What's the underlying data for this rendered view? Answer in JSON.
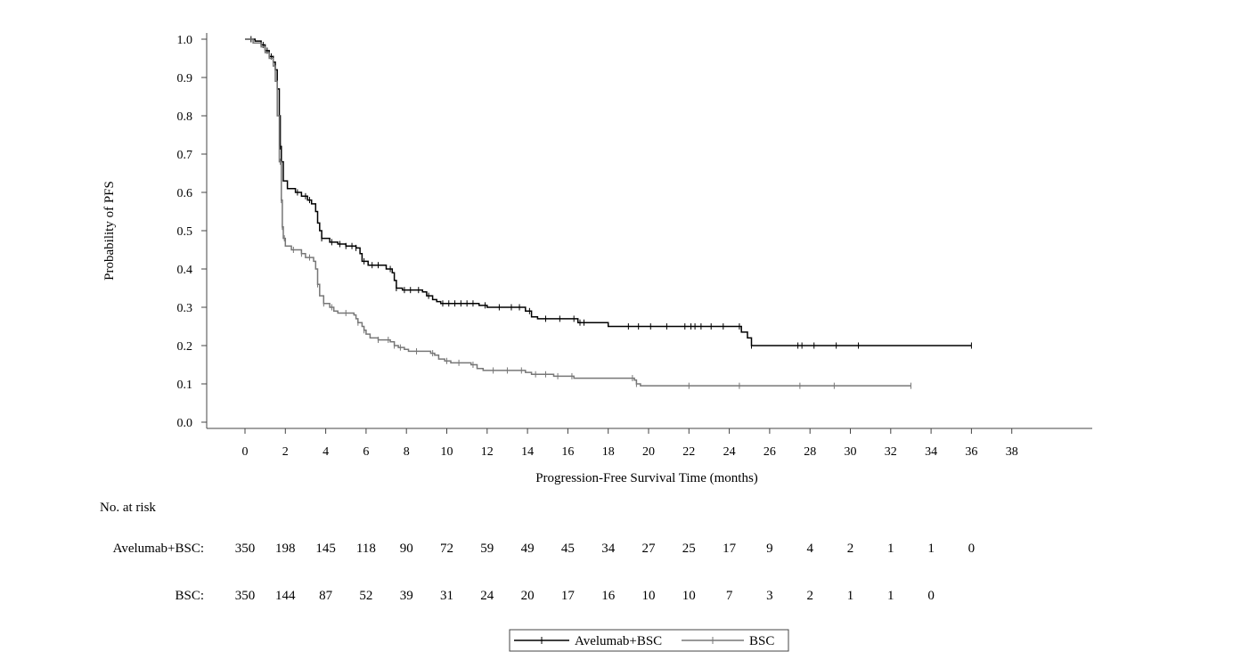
{
  "chart_data": {
    "type": "line",
    "subtype": "kaplan-meier step",
    "title": "",
    "xlabel": "Progression-Free Survival Time (months)",
    "ylabel": "Probability of PFS",
    "xlim": [
      -2,
      42
    ],
    "ylim": [
      0,
      1.0
    ],
    "x_ticks": [
      0,
      2,
      4,
      6,
      8,
      10,
      12,
      14,
      16,
      18,
      20,
      22,
      24,
      26,
      28,
      30,
      32,
      34,
      36,
      38
    ],
    "y_ticks": [
      0.0,
      0.1,
      0.2,
      0.3,
      0.4,
      0.5,
      0.6,
      0.7,
      0.8,
      0.9,
      1.0
    ],
    "y_tick_labels": [
      "0.0",
      "0.1",
      "0.2",
      "0.3",
      "0.4",
      "0.5",
      "0.6",
      "0.7",
      "0.8",
      "0.9",
      "1.0"
    ],
    "grid": false,
    "legend_position": "bottom-center",
    "series": [
      {
        "name": "Avelumab+BSC",
        "color": "#000000",
        "steps": [
          [
            0,
            1.0
          ],
          [
            0.5,
            0.995
          ],
          [
            0.8,
            0.985
          ],
          [
            1.0,
            0.97
          ],
          [
            1.2,
            0.955
          ],
          [
            1.4,
            0.94
          ],
          [
            1.5,
            0.92
          ],
          [
            1.6,
            0.87
          ],
          [
            1.7,
            0.8
          ],
          [
            1.75,
            0.72
          ],
          [
            1.8,
            0.68
          ],
          [
            1.9,
            0.63
          ],
          [
            2.1,
            0.61
          ],
          [
            2.5,
            0.6
          ],
          [
            2.8,
            0.59
          ],
          [
            3.1,
            0.58
          ],
          [
            3.3,
            0.57
          ],
          [
            3.5,
            0.55
          ],
          [
            3.6,
            0.52
          ],
          [
            3.7,
            0.5
          ],
          [
            3.8,
            0.48
          ],
          [
            4.2,
            0.47
          ],
          [
            4.6,
            0.465
          ],
          [
            5.0,
            0.46
          ],
          [
            5.5,
            0.455
          ],
          [
            5.7,
            0.44
          ],
          [
            5.8,
            0.42
          ],
          [
            6.1,
            0.41
          ],
          [
            7.0,
            0.4
          ],
          [
            7.3,
            0.39
          ],
          [
            7.4,
            0.37
          ],
          [
            7.5,
            0.35
          ],
          [
            7.8,
            0.345
          ],
          [
            8.8,
            0.34
          ],
          [
            9.0,
            0.33
          ],
          [
            9.3,
            0.32
          ],
          [
            9.5,
            0.315
          ],
          [
            9.7,
            0.31
          ],
          [
            11.6,
            0.305
          ],
          [
            12.0,
            0.3
          ],
          [
            13.9,
            0.29
          ],
          [
            14.2,
            0.275
          ],
          [
            14.5,
            0.27
          ],
          [
            16.5,
            0.26
          ],
          [
            18.0,
            0.25
          ],
          [
            24.6,
            0.235
          ],
          [
            24.9,
            0.22
          ],
          [
            25.1,
            0.2
          ],
          [
            36.0,
            0.2
          ]
        ],
        "censors": [
          0.3,
          0.9,
          1.1,
          1.3,
          1.75,
          1.8,
          2.6,
          3.0,
          3.2,
          3.8,
          4.3,
          4.7,
          5.0,
          5.3,
          5.5,
          5.9,
          6.3,
          6.6,
          7.2,
          7.5,
          7.9,
          8.2,
          8.6,
          9.1,
          9.8,
          10.1,
          10.4,
          10.7,
          11.0,
          11.3,
          11.9,
          12.6,
          13.2,
          13.6,
          14.1,
          14.9,
          15.6,
          16.3,
          16.6,
          16.8,
          19.0,
          19.5,
          20.1,
          20.9,
          21.8,
          22.1,
          22.3,
          22.6,
          23.1,
          23.7,
          24.5,
          25.1,
          27.4,
          27.6,
          28.2,
          29.3,
          30.4,
          36.0
        ]
      },
      {
        "name": "BSC",
        "color": "#777777",
        "steps": [
          [
            0,
            1.0
          ],
          [
            0.4,
            0.99
          ],
          [
            0.8,
            0.98
          ],
          [
            1.0,
            0.965
          ],
          [
            1.2,
            0.95
          ],
          [
            1.4,
            0.93
          ],
          [
            1.5,
            0.89
          ],
          [
            1.6,
            0.8
          ],
          [
            1.7,
            0.68
          ],
          [
            1.8,
            0.58
          ],
          [
            1.85,
            0.51
          ],
          [
            1.9,
            0.48
          ],
          [
            2.0,
            0.46
          ],
          [
            2.3,
            0.45
          ],
          [
            2.8,
            0.44
          ],
          [
            3.0,
            0.43
          ],
          [
            3.4,
            0.42
          ],
          [
            3.5,
            0.4
          ],
          [
            3.6,
            0.36
          ],
          [
            3.7,
            0.33
          ],
          [
            3.9,
            0.31
          ],
          [
            4.2,
            0.3
          ],
          [
            4.4,
            0.29
          ],
          [
            4.6,
            0.285
          ],
          [
            5.4,
            0.28
          ],
          [
            5.5,
            0.27
          ],
          [
            5.6,
            0.26
          ],
          [
            5.8,
            0.25
          ],
          [
            5.9,
            0.24
          ],
          [
            6.0,
            0.23
          ],
          [
            6.2,
            0.22
          ],
          [
            6.6,
            0.215
          ],
          [
            7.2,
            0.21
          ],
          [
            7.4,
            0.2
          ],
          [
            7.6,
            0.195
          ],
          [
            7.9,
            0.19
          ],
          [
            8.1,
            0.185
          ],
          [
            9.2,
            0.18
          ],
          [
            9.4,
            0.175
          ],
          [
            9.6,
            0.165
          ],
          [
            9.9,
            0.16
          ],
          [
            10.2,
            0.155
          ],
          [
            11.2,
            0.15
          ],
          [
            11.5,
            0.14
          ],
          [
            11.8,
            0.135
          ],
          [
            13.9,
            0.13
          ],
          [
            14.2,
            0.125
          ],
          [
            15.3,
            0.12
          ],
          [
            16.3,
            0.115
          ],
          [
            19.3,
            0.11
          ],
          [
            19.4,
            0.1
          ],
          [
            19.6,
            0.095
          ],
          [
            33.0,
            0.095
          ]
        ],
        "censors": [
          1.75,
          1.8,
          1.85,
          1.95,
          2.4,
          2.8,
          3.2,
          3.6,
          3.9,
          4.3,
          5.0,
          5.6,
          5.9,
          6.6,
          7.1,
          7.4,
          7.7,
          8.5,
          9.3,
          10.0,
          10.6,
          11.3,
          12.3,
          13.0,
          13.7,
          14.4,
          14.9,
          15.5,
          16.2,
          19.2,
          19.4,
          22.0,
          24.5,
          27.5,
          29.2,
          33.0
        ]
      }
    ],
    "risk_table": {
      "heading": "No. at risk",
      "times": [
        0,
        2,
        4,
        6,
        8,
        10,
        12,
        14,
        16,
        18,
        20,
        22,
        24,
        26,
        28,
        30,
        32,
        34,
        36
      ],
      "rows": [
        {
          "label": "Avelumab+BSC:",
          "values": [
            "350",
            "198",
            "145",
            "118",
            "90",
            "72",
            "59",
            "49",
            "45",
            "34",
            "27",
            "25",
            "17",
            "9",
            "4",
            "2",
            "1",
            "1",
            "0"
          ]
        },
        {
          "label": "BSC:",
          "values": [
            "350",
            "144",
            "87",
            "52",
            "39",
            "31",
            "24",
            "20",
            "17",
            "16",
            "10",
            "10",
            "7",
            "3",
            "2",
            "1",
            "1",
            "0"
          ]
        }
      ]
    }
  }
}
